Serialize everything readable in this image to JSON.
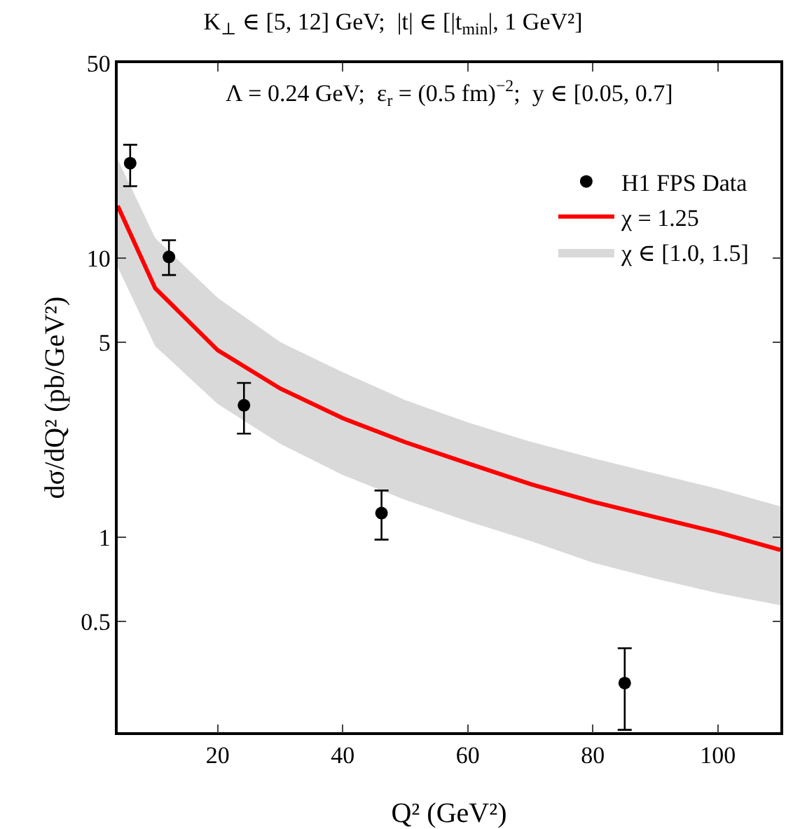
{
  "chart_data": {
    "type": "line",
    "title": "K$_{⊥}$ ∈ [5, 12] GeV;  |t| ∈ [|t$_{min}$|, 1 GeV²]",
    "xlabel": "Q² (GeV²)",
    "ylabel": "dσ/dQ² (pb/GeV²)",
    "annotations": [
      "Λ = 0.24 GeV;  ε$_{r}$ = (0.5 fm)$^{−2}$;  y ∈ [0.05, 0.7]",
      "χ ∈ [1.0, 1.5]"
    ],
    "series": [
      {
        "name": "H1 FPS Data",
        "type": "scatter",
        "color": "#000000",
        "marker": "circle",
        "x": [
          6,
          12.2,
          24.2,
          46.2,
          85.1
        ],
        "values": [
          21.9,
          10.1,
          2.97,
          1.22,
          0.3
        ],
        "errors": [
          [
            18.1,
            25.5
          ],
          [
            8.7,
            11.6
          ],
          [
            2.35,
            3.57
          ],
          [
            0.98,
            1.47
          ],
          [
            0.204,
            0.4
          ]
        ]
      },
      {
        "name": "χ = 1.25",
        "color": "#ff0000",
        "marker": "none",
        "line_style": "solid",
        "x": [
          4,
          10,
          20,
          30,
          40,
          50,
          60,
          70,
          80,
          90,
          100,
          110
        ],
        "values": [
          15.4,
          7.8,
          4.68,
          3.41,
          2.67,
          2.19,
          1.84,
          1.55,
          1.34,
          1.18,
          1.04,
          0.9
        ],
        "lower": [
          9.3,
          4.84,
          3.0,
          2.16,
          1.67,
          1.36,
          1.14,
          0.97,
          0.81,
          0.71,
          0.63,
          0.57
        ],
        "upper": [
          22.6,
          11.8,
          7.2,
          5.0,
          3.9,
          3.1,
          2.58,
          2.2,
          1.92,
          1.69,
          1.49,
          1.29
        ]
      }
    ],
    "xlim": [
      4,
      110
    ],
    "xticks": [
      20,
      40,
      60,
      80,
      100
    ],
    "ylim": [
      0.2,
      50
    ],
    "yticks": [
      0.5,
      1,
      5,
      10,
      50
    ],
    "log": "y",
    "grid": false,
    "legend": "top right"
  }
}
